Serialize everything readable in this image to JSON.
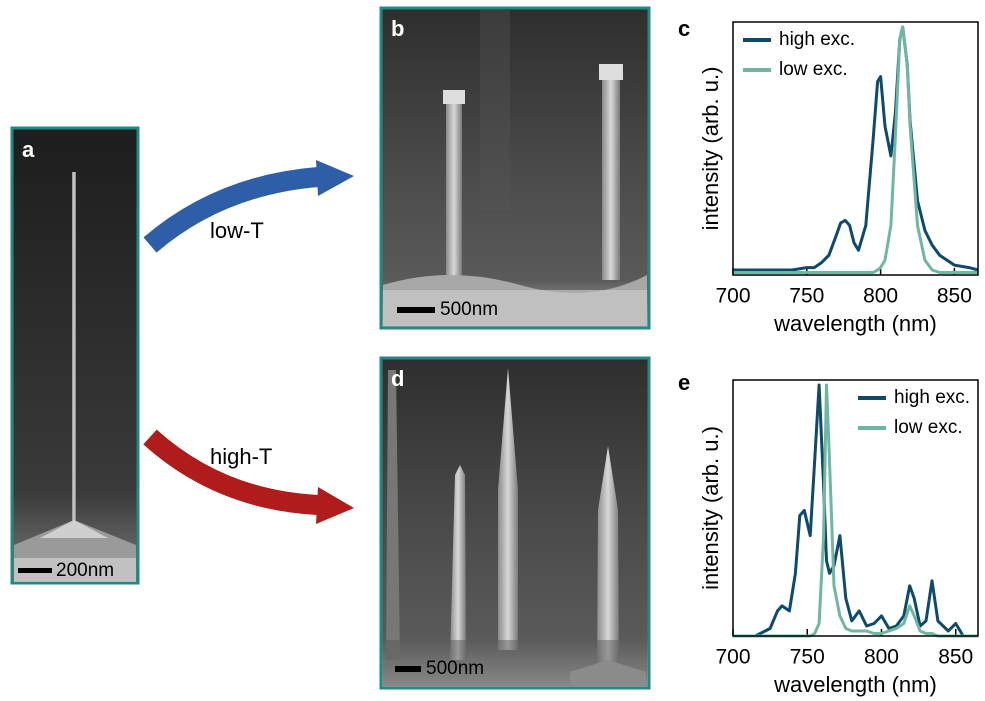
{
  "panels": {
    "a": {
      "label": "a",
      "scale_bar": "200nm"
    },
    "b": {
      "label": "b",
      "scale_bar": "500nm"
    },
    "c": {
      "label": "c"
    },
    "d": {
      "label": "d",
      "scale_bar": "500nm"
    },
    "e": {
      "label": "e"
    }
  },
  "arrows": [
    {
      "label": "low-T",
      "color": "#2e5ea8"
    },
    {
      "label": "high-T",
      "color": "#b01c1c"
    }
  ],
  "chart_data": [
    {
      "type": "line",
      "xlabel": "wavelength (nm)",
      "ylabel": "intensity (arb. u.)",
      "legend": "upper left",
      "xlim": [
        700,
        866
      ],
      "ylim": [
        0,
        1.02
      ],
      "xticks": [
        700,
        750,
        800,
        850
      ],
      "x": [
        700,
        710,
        720,
        730,
        740,
        750,
        755,
        760,
        765,
        770,
        773,
        776,
        779,
        782,
        785,
        790,
        795,
        798,
        800,
        803,
        807,
        810,
        813,
        815,
        818,
        820,
        825,
        830,
        835,
        840,
        850,
        860,
        866
      ],
      "series": [
        {
          "name": "high exc.",
          "color": "#0e4a6e",
          "values": [
            0.02,
            0.02,
            0.02,
            0.02,
            0.02,
            0.03,
            0.03,
            0.05,
            0.08,
            0.16,
            0.21,
            0.22,
            0.2,
            0.13,
            0.1,
            0.2,
            0.55,
            0.78,
            0.8,
            0.6,
            0.48,
            0.65,
            0.95,
            1.0,
            0.85,
            0.62,
            0.3,
            0.18,
            0.12,
            0.08,
            0.04,
            0.03,
            0.02
          ]
        },
        {
          "name": "low exc.",
          "color": "#6fb7a0",
          "values": [
            0.01,
            0.01,
            0.01,
            0.01,
            0.01,
            0.01,
            0.01,
            0.01,
            0.01,
            0.01,
            0.01,
            0.01,
            0.01,
            0.01,
            0.01,
            0.01,
            0.01,
            0.02,
            0.03,
            0.06,
            0.2,
            0.55,
            0.95,
            1.0,
            0.85,
            0.6,
            0.2,
            0.06,
            0.02,
            0.01,
            0.01,
            0.01,
            0.01
          ]
        }
      ]
    },
    {
      "type": "line",
      "xlabel": "wavelength (nm)",
      "ylabel": "intensity (arb. u.)",
      "legend": "upper right",
      "xlim": [
        700,
        865
      ],
      "ylim": [
        0,
        1.02
      ],
      "xticks": [
        700,
        750,
        800,
        850
      ],
      "x": [
        700,
        715,
        725,
        730,
        733,
        738,
        742,
        745,
        748,
        752,
        755,
        758,
        761,
        763,
        765,
        768,
        772,
        776,
        780,
        785,
        790,
        795,
        800,
        805,
        810,
        815,
        819,
        822,
        826,
        830,
        834,
        838,
        845,
        850,
        855,
        865
      ],
      "series": [
        {
          "name": "high exc.",
          "color": "#0e4a6e",
          "values": [
            0.0,
            0.0,
            0.03,
            0.1,
            0.12,
            0.1,
            0.25,
            0.48,
            0.5,
            0.4,
            0.7,
            1.0,
            0.6,
            0.3,
            0.25,
            0.28,
            0.4,
            0.15,
            0.06,
            0.1,
            0.04,
            0.05,
            0.08,
            0.03,
            0.04,
            0.08,
            0.2,
            0.15,
            0.04,
            0.06,
            0.22,
            0.06,
            0.02,
            0.05,
            0.0,
            0.0
          ]
        },
        {
          "name": "low exc.",
          "color": "#6fb7a0",
          "values": [
            0,
            0,
            0,
            0,
            0,
            0,
            0,
            0,
            0,
            0,
            0.01,
            0.05,
            0.4,
            1.0,
            0.7,
            0.2,
            0.08,
            0.03,
            0.02,
            0.02,
            0.02,
            0.01,
            0.01,
            0.02,
            0.03,
            0.05,
            0.12,
            0.08,
            0.02,
            0.01,
            0.01,
            0,
            0,
            0,
            0,
            0
          ]
        }
      ]
    }
  ]
}
